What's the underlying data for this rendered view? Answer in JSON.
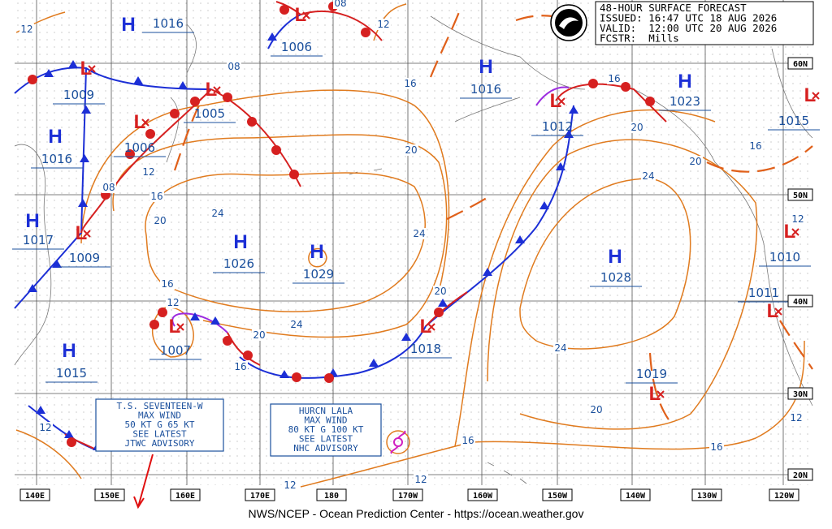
{
  "header": {
    "lines": [
      "48-HOUR SURFACE FORECAST",
      "ISSUED: 16:47 UTC 18 AUG 2026",
      "VALID:  12:00 UTC 20 AUG 2026",
      "FCSTR:  Mills"
    ]
  },
  "highs": [
    {
      "symbol": "H",
      "pressure": 1016
    },
    {
      "symbol": "H",
      "pressure": 1016
    },
    {
      "symbol": "H",
      "pressure": 1023
    },
    {
      "symbol": "H",
      "pressure": 1016
    },
    {
      "symbol": "H",
      "pressure": 1017
    },
    {
      "symbol": "H",
      "pressure": 1026
    },
    {
      "symbol": "H",
      "pressure": 1029
    },
    {
      "symbol": "H",
      "pressure": 1028
    },
    {
      "symbol": "H",
      "pressure": 1015
    }
  ],
  "lows": [
    {
      "symbol": "L",
      "pressure": 1006
    },
    {
      "symbol": "L",
      "pressure": 1009
    },
    {
      "symbol": "L",
      "pressure": 1005
    },
    {
      "symbol": "L",
      "pressure": 1006
    },
    {
      "symbol": "L",
      "pressure": 1012
    },
    {
      "symbol": "L",
      "pressure": 1015
    },
    {
      "symbol": "L",
      "pressure": 1009
    },
    {
      "symbol": "L",
      "pressure": 1010
    },
    {
      "symbol": "L",
      "pressure": 1011
    },
    {
      "symbol": "L",
      "pressure": 1007
    },
    {
      "symbol": "L",
      "pressure": 1018
    },
    {
      "symbol": "L",
      "pressure": 1019
    }
  ],
  "isobar_labels": [
    "12",
    "08",
    "12",
    "08",
    "16",
    "16",
    "20",
    "12",
    "16",
    "08",
    "20",
    "20",
    "16",
    "24",
    "20",
    "24",
    "24",
    "12",
    "16",
    "12",
    "20",
    "24",
    "20",
    "16",
    "24",
    "20",
    "12",
    "16",
    "16",
    "12",
    "12",
    "12"
  ],
  "advisories": [
    {
      "lines": [
        "T.S. SEVENTEEN-W",
        "MAX WIND",
        "50 KT G 65 KT",
        "SEE LATEST",
        "JTWC ADVISORY"
      ]
    },
    {
      "lines": [
        "HURCN LALA",
        "MAX WIND",
        "80 KT G 100 KT",
        "SEE LATEST",
        "NHC ADVISORY"
      ]
    }
  ],
  "lon_labels": [
    "140E",
    "150E",
    "160E",
    "170E",
    "180",
    "170W",
    "160W",
    "150W",
    "140W",
    "130W",
    "120W"
  ],
  "lat_labels": [
    "60N",
    "50N",
    "40N",
    "30N",
    "20N"
  ],
  "footer": "NWS/NCEP - Ocean Prediction Center - https://ocean.weather.gov"
}
